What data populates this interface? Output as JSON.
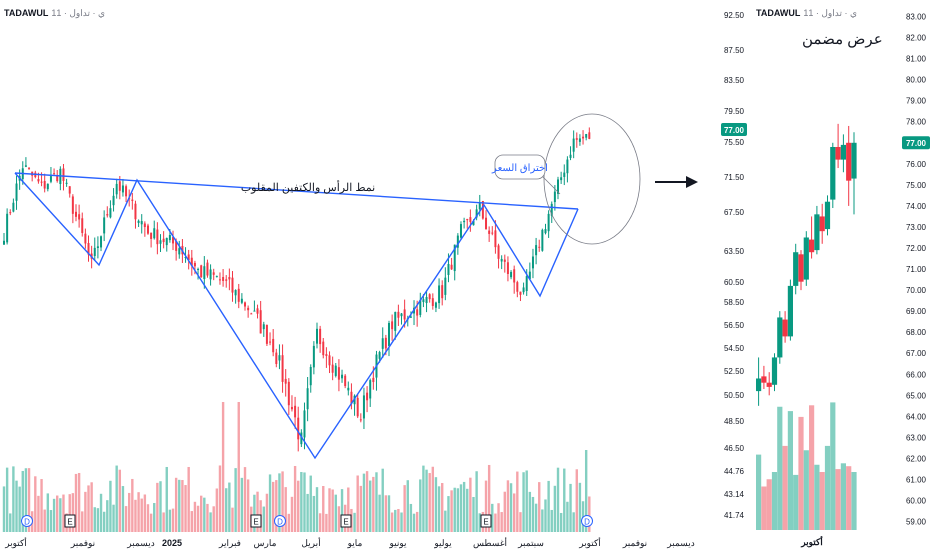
{
  "main": {
    "symbol": "TADAWUL",
    "meta": "1ي · تداول · 1",
    "price_badge": "77.00",
    "pattern_label": "نمط الرأس والكتفين المقلوب",
    "breakout_label": "اختراق السعر",
    "event_markers": [
      "D",
      "E",
      "E",
      "D",
      "E",
      "E",
      "D"
    ],
    "colors": {
      "up": "#089981",
      "down": "#f23645",
      "neckline": "#2962ff",
      "badge": "#089981"
    }
  },
  "zoom": {
    "symbol": "TADAWUL",
    "meta": "1ي · تداول · 1",
    "title": "عرض مضمن",
    "price_badge": "77.00"
  },
  "chart_data": [
    {
      "type": "candlestick",
      "title": "",
      "symbol": "TADAWUL",
      "x_ticks": [
        "أكتوبر",
        "نوفمبر",
        "ديسمبر",
        "2025",
        "فبراير",
        "مارس",
        "أبريل",
        "مايو",
        "يونيو",
        "يوليو",
        "أغسطس",
        "سبتمبر",
        "أكتوبر",
        "نوفمبر",
        "ديسمبر"
      ],
      "y_ticks": [
        "92.50",
        "87.50",
        "83.50",
        "79.50",
        "75.50",
        "71.50",
        "67.50",
        "63.50",
        "60.50",
        "58.50",
        "56.50",
        "54.50",
        "52.50",
        "50.50",
        "48.50",
        "46.50",
        "44.76",
        "43.14",
        "41.74"
      ],
      "scale": "log",
      "last_price": 77.0,
      "close_anchors": [
        {
          "i": 0,
          "v": 66.0
        },
        {
          "i": 6,
          "v": 73.5
        },
        {
          "i": 12,
          "v": 71.0
        },
        {
          "i": 18,
          "v": 72.8
        },
        {
          "i": 28,
          "v": 62.5
        },
        {
          "i": 36,
          "v": 71.5
        },
        {
          "i": 46,
          "v": 66.0
        },
        {
          "i": 56,
          "v": 64.5
        },
        {
          "i": 62,
          "v": 62.0
        },
        {
          "i": 70,
          "v": 61.0
        },
        {
          "i": 78,
          "v": 58.5
        },
        {
          "i": 86,
          "v": 55.0
        },
        {
          "i": 95,
          "v": 47.0
        },
        {
          "i": 100,
          "v": 56.0
        },
        {
          "i": 104,
          "v": 54.0
        },
        {
          "i": 114,
          "v": 49.0
        },
        {
          "i": 117,
          "v": 52.0
        },
        {
          "i": 124,
          "v": 57.0
        },
        {
          "i": 132,
          "v": 58.5
        },
        {
          "i": 140,
          "v": 60.0
        },
        {
          "i": 146,
          "v": 66.0
        },
        {
          "i": 152,
          "v": 68.5
        },
        {
          "i": 158,
          "v": 63.5
        },
        {
          "i": 166,
          "v": 59.5
        },
        {
          "i": 171,
          "v": 65.0
        },
        {
          "i": 176,
          "v": 70.0
        },
        {
          "i": 182,
          "v": 76.5
        },
        {
          "i": 187,
          "v": 77.0
        }
      ],
      "annotations": [
        "نمط الرأس والكتفين المقلوب",
        "اختراق السعر"
      ]
    },
    {
      "type": "candlestick",
      "title": "عرض مضمن",
      "symbol": "TADAWUL",
      "x_ticks": [
        "أكتوبر"
      ],
      "y_ticks": [
        "83.00",
        "82.00",
        "81.00",
        "80.00",
        "79.00",
        "78.00",
        "77.00",
        "76.00",
        "75.00",
        "74.00",
        "73.00",
        "72.00",
        "71.00",
        "70.00",
        "69.00",
        "68.00",
        "67.00",
        "66.00",
        "65.00",
        "64.00",
        "63.00",
        "62.00",
        "61.00",
        "60.00",
        "59.00"
      ],
      "ylim": [
        58.6,
        83.5
      ],
      "last_price": 77.0,
      "candles": [
        {
          "o": 65.2,
          "h": 66.8,
          "l": 64.5,
          "c": 65.8
        },
        {
          "o": 65.9,
          "h": 66.4,
          "l": 65.3,
          "c": 65.6
        },
        {
          "o": 65.6,
          "h": 66.1,
          "l": 65.0,
          "c": 65.4
        },
        {
          "o": 65.5,
          "h": 67.0,
          "l": 65.2,
          "c": 66.8
        },
        {
          "o": 66.8,
          "h": 69.0,
          "l": 66.5,
          "c": 68.7
        },
        {
          "o": 68.6,
          "h": 69.0,
          "l": 67.5,
          "c": 67.8
        },
        {
          "o": 67.8,
          "h": 70.5,
          "l": 67.6,
          "c": 70.2
        },
        {
          "o": 70.2,
          "h": 72.2,
          "l": 69.8,
          "c": 71.8
        },
        {
          "o": 71.7,
          "h": 71.9,
          "l": 70.0,
          "c": 70.4
        },
        {
          "o": 70.5,
          "h": 72.8,
          "l": 70.2,
          "c": 72.5
        },
        {
          "o": 72.4,
          "h": 73.5,
          "l": 71.5,
          "c": 71.8
        },
        {
          "o": 71.9,
          "h": 74.0,
          "l": 71.7,
          "c": 73.6
        },
        {
          "o": 73.5,
          "h": 74.1,
          "l": 72.2,
          "c": 72.8
        },
        {
          "o": 72.9,
          "h": 74.5,
          "l": 72.6,
          "c": 74.2
        },
        {
          "o": 74.3,
          "h": 77.0,
          "l": 73.9,
          "c": 76.8
        },
        {
          "o": 76.8,
          "h": 77.9,
          "l": 75.8,
          "c": 76.2
        },
        {
          "o": 76.2,
          "h": 77.4,
          "l": 75.6,
          "c": 76.9
        },
        {
          "o": 77.0,
          "h": 77.8,
          "l": 74.0,
          "c": 75.2
        },
        {
          "o": 75.3,
          "h": 77.5,
          "l": 73.6,
          "c": 77.0
        }
      ],
      "volumes": [
        52,
        30,
        35,
        40,
        85,
        58,
        82,
        38,
        78,
        55,
        86,
        45,
        40,
        58,
        88,
        42,
        46,
        44,
        40
      ]
    }
  ]
}
